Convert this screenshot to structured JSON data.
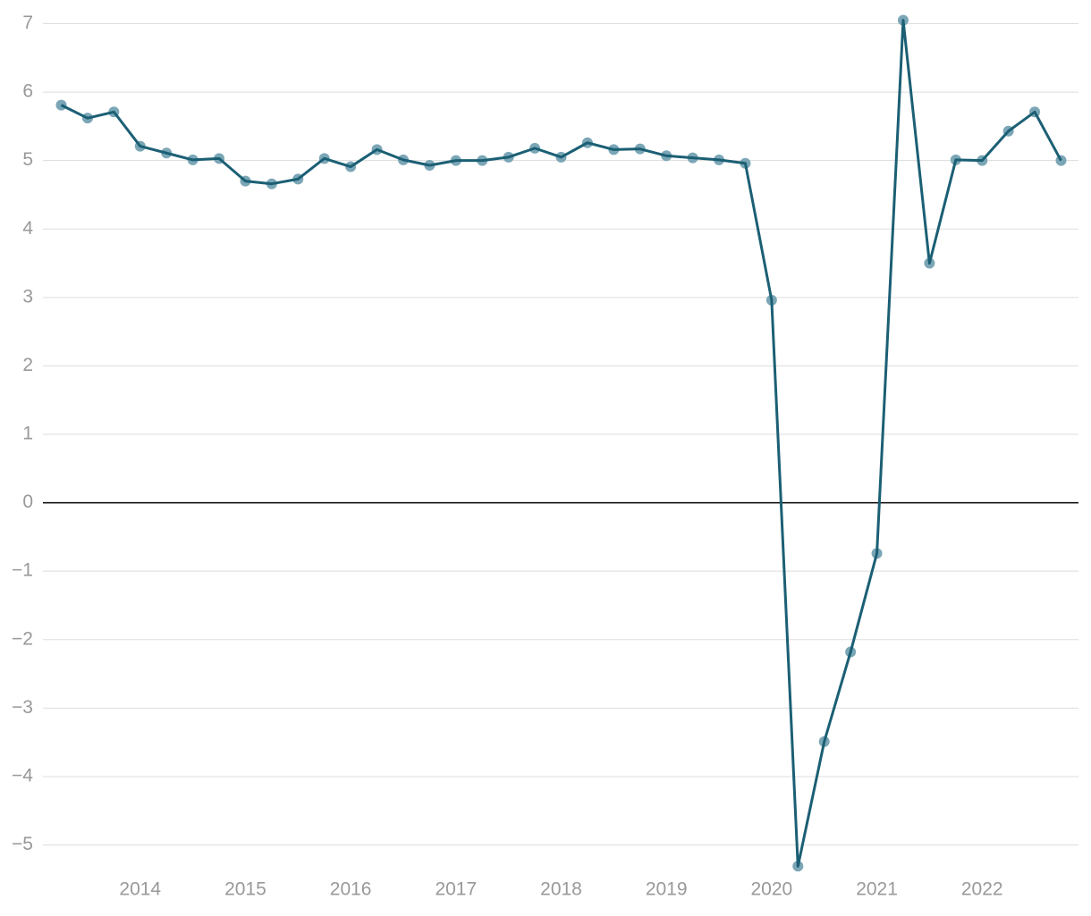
{
  "chart_data": {
    "type": "line",
    "categories": [
      null,
      null,
      null,
      "2014",
      null,
      null,
      null,
      "2015",
      null,
      null,
      null,
      "2016",
      null,
      null,
      null,
      "2017",
      null,
      null,
      null,
      "2018",
      null,
      null,
      null,
      "2019",
      null,
      null,
      null,
      "2020",
      null,
      null,
      null,
      "2021",
      null,
      null,
      null,
      "2022",
      null,
      null,
      null
    ],
    "series": [
      {
        "color": "#1b5f74",
        "values": [
          5.81,
          5.62,
          5.71,
          5.21,
          5.11,
          5.01,
          5.03,
          4.7,
          4.66,
          4.73,
          5.03,
          4.91,
          5.16,
          5.01,
          4.93,
          5.0,
          5.0,
          5.05,
          5.18,
          5.05,
          5.26,
          5.16,
          5.17,
          5.07,
          5.04,
          5.01,
          4.96,
          2.96,
          -5.31,
          -3.49,
          -2.18,
          -0.74,
          7.05,
          3.5,
          5.01,
          5.0,
          5.43,
          5.71,
          5.0
        ]
      }
    ],
    "ylim": [
      -5.45,
      7.15
    ],
    "yticks": [
      {
        "value": -5,
        "label": "−5"
      },
      {
        "value": -4,
        "label": "−4"
      },
      {
        "value": -3,
        "label": "−3"
      },
      {
        "value": -2,
        "label": "−2"
      },
      {
        "value": -1,
        "label": "−1"
      },
      0,
      1,
      2,
      3,
      4,
      5,
      6,
      7
    ],
    "grid": true,
    "marker_color": "#7ba6b6"
  }
}
